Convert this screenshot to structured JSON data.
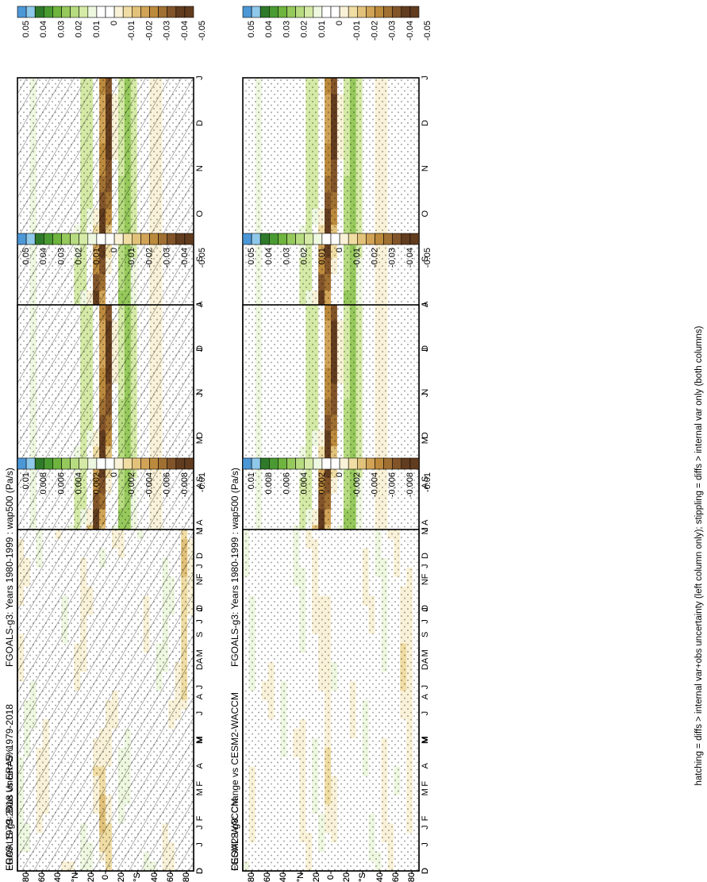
{
  "figure": {
    "footer_note": "hatching = diffs > internal var+obs uncertainty (left column only); stippling = diffs > internal var only (both columns)"
  },
  "time_ticks": [
    "D",
    "J",
    "F",
    "M",
    "A",
    "M",
    "J",
    "J",
    "A",
    "S",
    "O",
    "N",
    "D",
    "J"
  ],
  "lat_ticks": [
    "80",
    "60",
    "40",
    "°N",
    "20",
    "0",
    "20",
    "°S",
    "40",
    "60",
    "80"
  ],
  "colors": {
    "positive": [
      "#4c97d6",
      "#8ec8ea",
      "#2e7a2a",
      "#4a9a32",
      "#6eb43e",
      "#96c95c",
      "#b7db80",
      "#d4eaa6",
      "#eef7e0"
    ],
    "neutral": "#ffffff",
    "negative": [
      "#faf2d8",
      "#f0dda4",
      "#e2c27a",
      "#d1a357",
      "#bc8a3c",
      "#a07032",
      "#82542a",
      "#623c1e"
    ]
  },
  "chart_data": [
    {
      "id": "p1",
      "type": "heatmap",
      "title": "FGOALS-g3: Years 1980-1999 : wap500 (Pa/s)",
      "x": [
        "D",
        "J",
        "F",
        "M",
        "A",
        "M",
        "J",
        "J",
        "A",
        "S",
        "O",
        "N",
        "D",
        "J"
      ],
      "y": [
        "80",
        "60",
        "40",
        "°N",
        "20",
        "0",
        "20",
        "°S",
        "40",
        "60",
        "80"
      ],
      "legend_labels": [
        "0.05",
        "0.04",
        "0.03",
        "0.02",
        "0.01",
        "0",
        "-0.01",
        "-0.02",
        "-0.03",
        "-0.04",
        "-0.05"
      ],
      "field": "itcz",
      "amp": 0.05,
      "hatch": true,
      "stipple": true
    },
    {
      "id": "p2",
      "type": "heatmap",
      "title": "FGOALS-g3: Years 1980-1999 : wap500 (Pa/s)",
      "x": [
        "D",
        "J",
        "F",
        "M",
        "A",
        "M",
        "J",
        "J",
        "A",
        "S",
        "O",
        "N",
        "D",
        "J"
      ],
      "y": [
        "80",
        "60",
        "40",
        "°N",
        "20",
        "0",
        "20",
        "°S",
        "40",
        "60",
        "80"
      ],
      "legend_labels": [
        "0.05",
        "0.04",
        "0.03",
        "0.02",
        "0.01",
        "0",
        "-0.01",
        "-0.02",
        "-0.03",
        "-0.04",
        "-0.05"
      ],
      "field": "itcz",
      "amp": 0.05,
      "hatch": false,
      "stipple": true
    },
    {
      "id": "p3",
      "type": "heatmap",
      "title": "ERA5: 1979-2018 Uncer=5%",
      "x": [
        "D",
        "J",
        "F",
        "M",
        "A",
        "M",
        "J",
        "J",
        "A",
        "S",
        "O",
        "N",
        "D",
        "J"
      ],
      "y": [
        "80",
        "60",
        "40",
        "°N",
        "20",
        "0",
        "20",
        "°S",
        "40",
        "60",
        "80"
      ],
      "legend_labels": [
        "0.05",
        "0.04",
        "0.03",
        "0.02",
        "0.01",
        "0",
        "-0.01",
        "-0.02",
        "-0.03",
        "-0.04",
        "-0.05"
      ],
      "field": "itcz",
      "amp": 0.05,
      "hatch": true,
      "stipple": true
    },
    {
      "id": "p4",
      "type": "heatmap",
      "title": "CESM2-WACCM",
      "x": [
        "D",
        "J",
        "F",
        "M",
        "A",
        "M",
        "J",
        "J",
        "A",
        "S",
        "O",
        "N",
        "D",
        "J"
      ],
      "y": [
        "80",
        "60",
        "40",
        "°N",
        "20",
        "0",
        "20",
        "°S",
        "40",
        "60",
        "80"
      ],
      "legend_labels": [
        "0.05",
        "0.04",
        "0.03",
        "0.02",
        "0.01",
        "0",
        "-0.01",
        "-0.02",
        "-0.03",
        "-0.04",
        "-0.05"
      ],
      "field": "itcz",
      "amp": 0.05,
      "hatch": false,
      "stipple": true
    },
    {
      "id": "p5",
      "type": "heatmap",
      "title": "FGOALS-g3: Bias vs ERA5: 1979-2018",
      "x": [
        "D",
        "J",
        "F",
        "M",
        "A",
        "M",
        "J",
        "J",
        "A",
        "S",
        "O",
        "N",
        "D",
        "J"
      ],
      "y": [
        "80",
        "60",
        "40",
        "°N",
        "20",
        "0",
        "20",
        "°S",
        "40",
        "60",
        "80"
      ],
      "legend_labels": [
        "0.01",
        "0.008",
        "0.006",
        "0.004",
        "0.002",
        "0",
        "-0.002",
        "-0.004",
        "-0.006",
        "-0.008",
        "-0.01"
      ],
      "field": "diff",
      "amp": 0.01,
      "hatch": true,
      "stipple": true
    },
    {
      "id": "p6",
      "type": "heatmap",
      "title": "FGOALS-g3: Change vs CESM2-WACCM",
      "x": [
        "D",
        "J",
        "F",
        "M",
        "A",
        "M",
        "J",
        "J",
        "A",
        "S",
        "O",
        "N",
        "D",
        "J"
      ],
      "y": [
        "80",
        "60",
        "40",
        "°N",
        "20",
        "0",
        "20",
        "°S",
        "40",
        "60",
        "80"
      ],
      "legend_labels": [
        "0.01",
        "0.008",
        "0.006",
        "0.004",
        "0.002",
        "0",
        "-0.002",
        "-0.004",
        "-0.006",
        "-0.008",
        "-0.01"
      ],
      "field": "diff2",
      "amp": 0.01,
      "hatch": false,
      "stipple": true
    }
  ]
}
